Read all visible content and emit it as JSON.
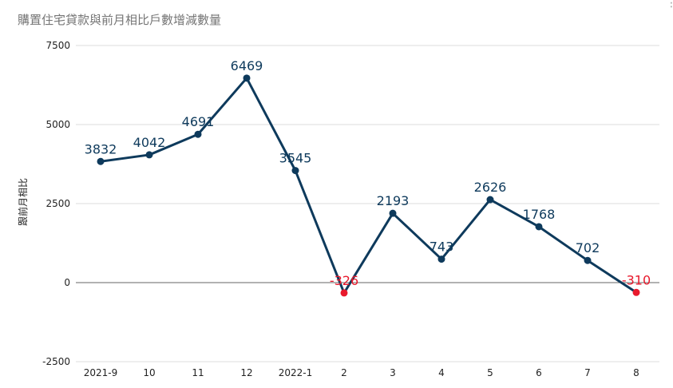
{
  "chart_data": {
    "type": "line",
    "title": "購置住宅貸款與前月相比戶數增減數量",
    "xlabel": "",
    "ylabel": "跟前月相比",
    "categories": [
      "2021-9",
      "10",
      "11",
      "12",
      "2022-1",
      "2",
      "3",
      "4",
      "5",
      "6",
      "7",
      "8"
    ],
    "values": [
      3832,
      4042,
      4691,
      6469,
      3545,
      -326,
      2193,
      743,
      2626,
      1768,
      702,
      -310
    ],
    "data_labels": [
      "3832",
      "4042",
      "4691",
      "6469",
      "3545",
      "-326",
      "2193",
      "743",
      "2626",
      "1768",
      "702",
      "-310"
    ],
    "y_ticks": [
      -2500,
      0,
      2500,
      5000,
      7500
    ],
    "y_tick_labels": [
      "-2500",
      "0",
      "2500",
      "5000",
      "7500"
    ],
    "ylim": [
      -2500,
      7500
    ],
    "grid": true,
    "legend": "none",
    "colors": {
      "line": "#0e3a5c",
      "negative": "#e8192c",
      "grid": "#dddddd",
      "zero_line": "#666666"
    }
  },
  "ui": {
    "menu_icon": "vertical-dots-icon",
    "menu_glyph": "⋮"
  }
}
